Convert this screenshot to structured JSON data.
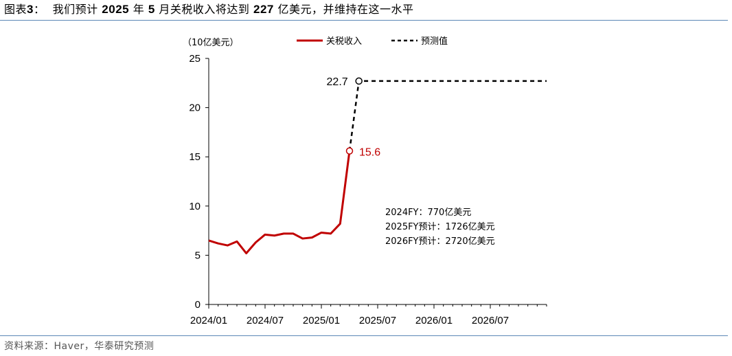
{
  "header": {
    "figure_label": "图表",
    "figure_number": "3",
    "colon": "：",
    "t1": "我们预计",
    "t2": "2025",
    "t3": "年",
    "t4": "5",
    "t5": "月关税收入将达到",
    "t6": "227",
    "t7": "亿美元，并维持在这一水平"
  },
  "footer": {
    "source": "资料来源：Haver，华泰研究预测"
  },
  "chart_data": {
    "type": "line",
    "unit_label": "（10亿美元）",
    "ylim": [
      0,
      25
    ],
    "yticks": [
      "0",
      "5",
      "10",
      "15",
      "20",
      "25"
    ],
    "xlim": [
      0,
      36
    ],
    "xticks": [
      "2024/01",
      "2024/07",
      "2025/01",
      "2025/07",
      "2026/01",
      "2026/07"
    ],
    "legend": {
      "placement": "top",
      "actual_label": "关税收入",
      "forecast_label": "预测值"
    },
    "series": [
      {
        "name": "关税收入",
        "color": "#c00000",
        "style": "solid",
        "x": [
          0,
          1,
          2,
          3,
          4,
          5,
          6,
          7,
          8,
          9,
          10,
          11,
          12,
          13,
          14,
          15,
          16
        ],
        "values": [
          6.5,
          6.2,
          6.0,
          6.4,
          5.2,
          6.3,
          7.1,
          7.0,
          7.2,
          7.2,
          6.7,
          6.8,
          7.3,
          7.2,
          8.2,
          15.6,
          null
        ]
      },
      {
        "name": "预测值",
        "color": "#000000",
        "style": "dashed",
        "x": [
          15,
          16,
          17,
          18,
          19,
          20,
          21,
          22,
          23,
          24,
          25,
          26,
          27,
          28,
          29,
          30,
          31,
          32,
          33,
          34,
          35,
          36
        ],
        "values": [
          15.6,
          22.7,
          22.7,
          22.7,
          22.7,
          22.7,
          22.7,
          22.7,
          22.7,
          22.7,
          22.7,
          22.7,
          22.7,
          22.7,
          22.7,
          22.7,
          22.7,
          22.7,
          22.7,
          22.7,
          22.7,
          22.7
        ]
      }
    ],
    "annotations": {
      "actual_point": {
        "x": 15,
        "y": 15.6,
        "label": "15.6",
        "color": "#c00000"
      },
      "forecast_point": {
        "x": 16,
        "y": 22.7,
        "label": "22.7",
        "color": "#000000"
      },
      "notes": [
        "2024FY：770亿美元",
        "2025FY预计：1726亿美元",
        "2026FY预计：2720亿美元"
      ]
    }
  }
}
